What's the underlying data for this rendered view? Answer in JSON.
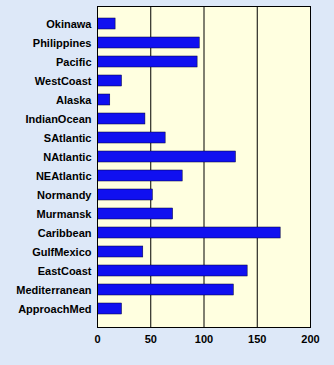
{
  "chart_data": {
    "type": "bar",
    "orientation": "horizontal",
    "categories": [
      "Okinawa",
      "Philippines",
      "Pacific",
      "WestCoast",
      "Alaska",
      "IndianOcean",
      "SAtlantic",
      "NAtlantic",
      "NEAtlantic",
      "Normandy",
      "Murmansk",
      "Caribbean",
      "GulfMexico",
      "EastCoast",
      "Mediterranean",
      "ApproachMed"
    ],
    "values": [
      17,
      96,
      94,
      23,
      12,
      45,
      64,
      130,
      80,
      52,
      71,
      172,
      43,
      141,
      128,
      23
    ],
    "color": "#1010f0",
    "xlim": [
      0,
      200
    ],
    "xticks": [
      0,
      50,
      100,
      150,
      200
    ],
    "grid": true
  }
}
